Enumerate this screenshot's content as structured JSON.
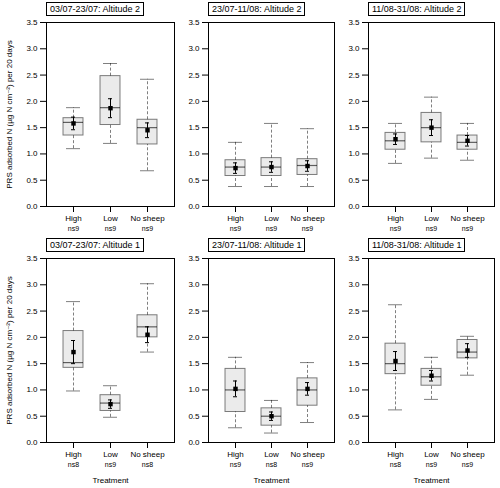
{
  "chart_data": [
    {
      "type": "box",
      "title": "03/07-23/07: Altitude 2",
      "categories": [
        "High",
        "Low",
        "No sheep"
      ],
      "n_labels": [
        "ns9",
        "ns9",
        "ns9"
      ],
      "median": [
        1.6,
        1.88,
        1.5
      ],
      "q1": [
        1.35,
        1.55,
        1.18
      ],
      "q3": [
        1.68,
        2.48,
        1.65
      ],
      "whislo": [
        1.1,
        1.2,
        0.68
      ],
      "whishi": [
        1.88,
        2.72,
        2.42
      ],
      "values": [
        1.58,
        1.87,
        1.45
      ],
      "error": [
        0.12,
        0.18,
        0.14
      ],
      "marker": "square",
      "grid": false,
      "ylabel": "PRS adsorbed N (µg N cm⁻²) per 20 days",
      "ylim": [
        0.0,
        3.5
      ],
      "yticks": [
        {
          "value": 0.0,
          "label": "0.0"
        },
        0.5,
        {
          "value": 1.0,
          "label": "1.0"
        },
        1.5,
        {
          "value": 2.0,
          "label": "2.0"
        },
        2.5,
        {
          "value": 3.0,
          "label": "3.0"
        },
        3.5
      ]
    },
    {
      "type": "box",
      "title": "23/07-11/08: Altitude 2",
      "categories": [
        "High",
        "Low",
        "No sheep"
      ],
      "n_labels": [
        "ns9",
        "ns9",
        "ns9"
      ],
      "median": [
        0.75,
        0.75,
        0.78
      ],
      "q1": [
        0.58,
        0.58,
        0.6
      ],
      "q3": [
        0.88,
        0.92,
        0.9
      ],
      "whislo": [
        0.38,
        0.38,
        0.38
      ],
      "whishi": [
        1.22,
        1.58,
        1.48
      ],
      "values": [
        0.73,
        0.75,
        0.77
      ],
      "error": [
        0.1,
        0.1,
        0.1
      ],
      "marker": "square",
      "grid": false,
      "ylim": [
        0.0,
        3.5
      ],
      "yticks": [
        {
          "value": 0.0,
          "label": "0.0"
        },
        0.5,
        {
          "value": 1.0,
          "label": "1.0"
        },
        1.5,
        {
          "value": 2.0,
          "label": "2.0"
        },
        2.5,
        {
          "value": 3.0,
          "label": "3.0"
        },
        3.5
      ]
    },
    {
      "type": "box",
      "title": "11/08-31/08: Altitude 2",
      "categories": [
        "High",
        "Low",
        "No sheep"
      ],
      "n_labels": [
        "ns9",
        "ns9",
        "ns9"
      ],
      "median": [
        1.25,
        1.5,
        1.22
      ],
      "q1": [
        1.08,
        1.22,
        1.08
      ],
      "q3": [
        1.4,
        1.78,
        1.35
      ],
      "whislo": [
        0.82,
        0.92,
        0.88
      ],
      "whishi": [
        1.58,
        2.08,
        1.58
      ],
      "values": [
        1.28,
        1.5,
        1.25
      ],
      "error": [
        0.1,
        0.15,
        0.1
      ],
      "marker": "square",
      "grid": false,
      "ylim": [
        0.0,
        3.5
      ],
      "yticks": [
        {
          "value": 0.0,
          "label": "0.0"
        },
        0.5,
        {
          "value": 1.0,
          "label": "1.0"
        },
        1.5,
        {
          "value": 2.0,
          "label": "2.0"
        },
        2.5,
        {
          "value": 3.0,
          "label": "3.0"
        },
        3.5
      ]
    },
    {
      "type": "box",
      "title": "03/07-23/07: Altitude 1",
      "categories": [
        "High",
        "Low",
        "No sheep"
      ],
      "n_labels": [
        "ns8",
        "ns9",
        "ns8"
      ],
      "median": [
        1.52,
        0.75,
        2.2
      ],
      "q1": [
        1.42,
        0.6,
        2.0
      ],
      "q3": [
        2.12,
        0.9,
        2.42
      ],
      "whislo": [
        0.98,
        0.48,
        1.72
      ],
      "whishi": [
        2.68,
        1.08,
        3.02
      ],
      "values": [
        1.72,
        0.73,
        2.05
      ],
      "error": [
        0.22,
        0.08,
        0.15
      ],
      "marker": "square",
      "grid": false,
      "ylabel": "PRS adsorbed N (µg N cm⁻²) per 20 days",
      "xlabel": "Treatment",
      "ylim": [
        0.0,
        3.5
      ],
      "yticks": [
        {
          "value": 0.0,
          "label": "0.0"
        },
        0.5,
        {
          "value": 1.0,
          "label": "1.0"
        },
        1.5,
        {
          "value": 2.0,
          "label": "2.0"
        },
        2.5,
        {
          "value": 3.0,
          "label": "3.0"
        },
        3.5
      ]
    },
    {
      "type": "box",
      "title": "23/07-11/08: Altitude 1",
      "categories": [
        "High",
        "Low",
        "No sheep"
      ],
      "n_labels": [
        "ns9",
        "ns8",
        "ns9"
      ],
      "median": [
        1.0,
        0.5,
        1.0
      ],
      "q1": [
        0.58,
        0.32,
        0.7
      ],
      "q3": [
        1.4,
        0.65,
        1.22
      ],
      "whislo": [
        0.28,
        0.18,
        0.38
      ],
      "whishi": [
        1.62,
        0.8,
        1.52
      ],
      "values": [
        1.02,
        0.5,
        1.02
      ],
      "error": [
        0.15,
        0.08,
        0.12
      ],
      "marker": "square",
      "grid": false,
      "xlabel": "Treatment",
      "ylim": [
        0.0,
        3.5
      ],
      "yticks": [
        {
          "value": 0.0,
          "label": "0.0"
        },
        0.5,
        {
          "value": 1.0,
          "label": "1.0"
        },
        1.5,
        {
          "value": 2.0,
          "label": "2.0"
        },
        2.5,
        {
          "value": 3.0,
          "label": "3.0"
        },
        3.5
      ]
    },
    {
      "type": "box",
      "title": "11/08-31/08: Altitude 1",
      "categories": [
        "High",
        "Low",
        "No sheep"
      ],
      "n_labels": [
        "ns8",
        "ns9",
        "ns9"
      ],
      "median": [
        1.5,
        1.25,
        1.72
      ],
      "q1": [
        1.3,
        1.08,
        1.6
      ],
      "q3": [
        1.88,
        1.4,
        1.95
      ],
      "whislo": [
        0.62,
        0.82,
        1.28
      ],
      "whishi": [
        2.62,
        1.62,
        2.02
      ],
      "values": [
        1.55,
        1.27,
        1.75
      ],
      "error": [
        0.18,
        0.1,
        0.13
      ],
      "marker": "square",
      "grid": false,
      "xlabel": "Treatment",
      "ylim": [
        0.0,
        3.5
      ],
      "yticks": [
        {
          "value": 0.0,
          "label": "0.0"
        },
        0.5,
        {
          "value": 1.0,
          "label": "1.0"
        },
        1.5,
        {
          "value": 2.0,
          "label": "2.0"
        },
        2.5,
        {
          "value": 3.0,
          "label": "3.0"
        },
        3.5
      ]
    }
  ]
}
